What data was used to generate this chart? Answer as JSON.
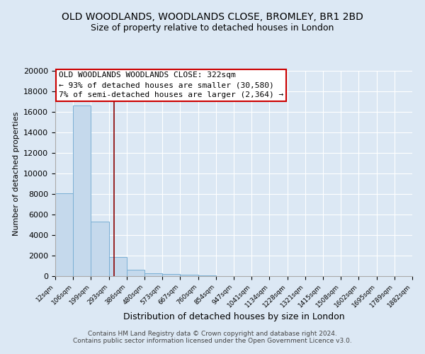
{
  "title": "OLD WOODLANDS, WOODLANDS CLOSE, BROMLEY, BR1 2BD",
  "subtitle": "Size of property relative to detached houses in London",
  "xlabel": "Distribution of detached houses by size in London",
  "ylabel": "Number of detached properties",
  "bar_values": [
    8100,
    16600,
    5300,
    1850,
    650,
    280,
    175,
    130,
    100,
    0,
    0,
    0,
    0,
    0,
    0,
    0,
    0,
    0,
    0,
    0
  ],
  "bar_labels": [
    "12sqm",
    "106sqm",
    "199sqm",
    "293sqm",
    "386sqm",
    "480sqm",
    "573sqm",
    "667sqm",
    "760sqm",
    "854sqm",
    "947sqm",
    "1041sqm",
    "1134sqm",
    "1228sqm",
    "1321sqm",
    "1415sqm",
    "1508sqm",
    "1602sqm",
    "1695sqm",
    "1789sqm",
    "1882sqm"
  ],
  "bar_color": "#c5d9ec",
  "bar_edge_color": "#7aafd4",
  "bar_width": 1.0,
  "vline_color": "#8b0000",
  "ylim": [
    0,
    20000
  ],
  "yticks": [
    0,
    2000,
    4000,
    6000,
    8000,
    10000,
    12000,
    14000,
    16000,
    18000,
    20000
  ],
  "annotation_title": "OLD WOODLANDS WOODLANDS CLOSE: 322sqm",
  "annotation_line1": "← 93% of detached houses are smaller (30,580)",
  "annotation_line2": "7% of semi-detached houses are larger (2,364) →",
  "annotation_box_color": "#ffffff",
  "annotation_box_edge": "#cc0000",
  "footer_line1": "Contains HM Land Registry data © Crown copyright and database right 2024.",
  "footer_line2": "Contains public sector information licensed under the Open Government Licence v3.0.",
  "background_color": "#dce8f4",
  "plot_bg_color": "#dce8f4",
  "grid_color": "#ffffff",
  "title_fontsize": 10,
  "subtitle_fontsize": 9
}
